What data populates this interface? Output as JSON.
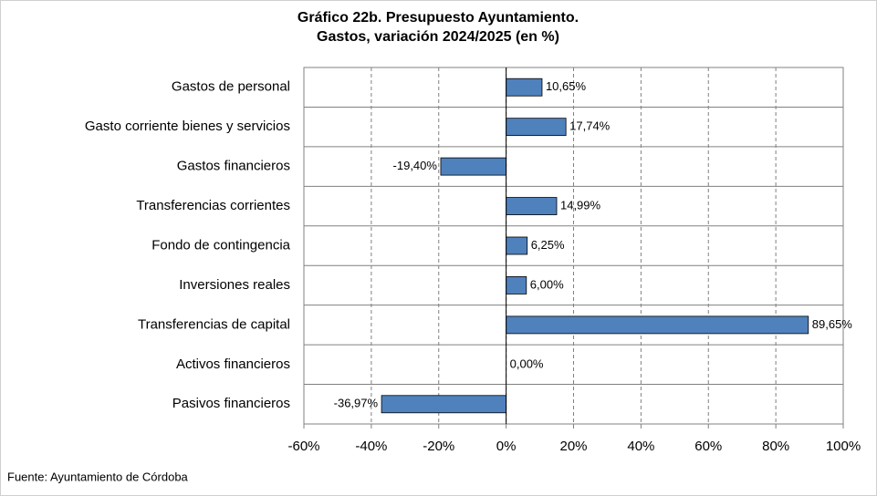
{
  "chart_data": {
    "type": "barh",
    "title": "Gráfico 22b. Presupuesto Ayuntamiento.",
    "subtitle": "Gastos, variación 2024/2025 (en %)",
    "categories": [
      "Gastos de personal",
      "Gasto corriente bienes y servicios",
      "Gastos financieros",
      "Transferencias corrientes",
      "Fondo de contingencia",
      "Inversiones reales",
      "Transferencias de capital",
      "Activos financieros",
      "Pasivos financieros"
    ],
    "values": [
      10.65,
      17.74,
      -19.4,
      14.99,
      6.25,
      6.0,
      89.65,
      0.0,
      -36.97
    ],
    "value_labels": [
      "10,65%",
      "17,74%",
      "-19,40%",
      "14,99%",
      "6,25%",
      "6,00%",
      "89,65%",
      "0,00%",
      "-36,97%"
    ],
    "color": "#4f81bd",
    "xlim": [
      -60,
      100
    ],
    "xticks": [
      {
        "value": -60,
        "label": "-60%"
      },
      {
        "value": -40,
        "label": "-40%"
      },
      {
        "value": -20,
        "label": "-20%"
      },
      {
        "value": 0,
        "label": "0%"
      },
      {
        "value": 20,
        "label": "20%"
      },
      {
        "value": 40,
        "label": "40%"
      },
      {
        "value": 60,
        "label": "60%"
      },
      {
        "value": 80,
        "label": "80%"
      },
      {
        "value": 100,
        "label": "100%"
      }
    ],
    "grid": true,
    "source": "Fuente: Ayuntamiento de Córdoba"
  }
}
